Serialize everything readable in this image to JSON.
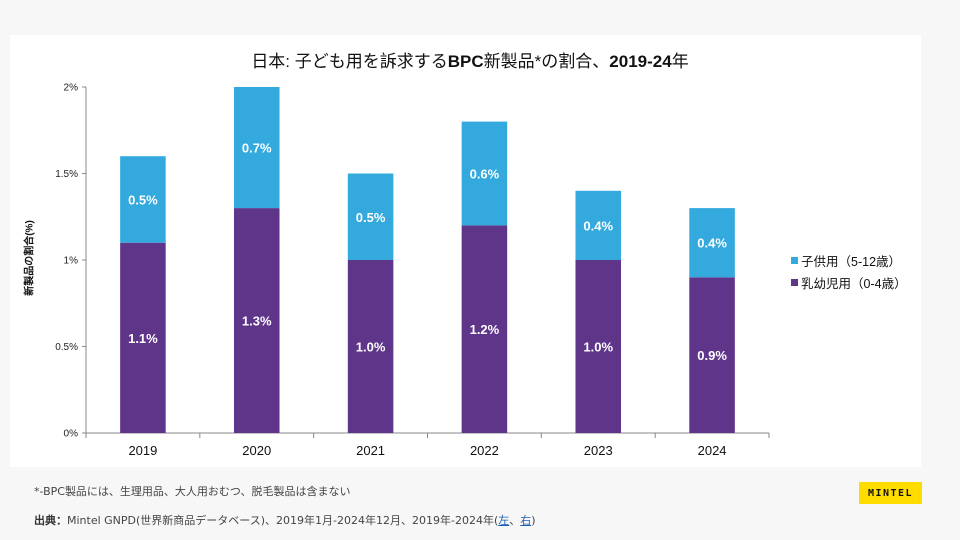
{
  "title": {
    "prefix": "日本: 子ども用を訴求する",
    "bold": "BPC",
    "middle": "新製品*の割合、",
    "years": "2019-24",
    "suffix": "年"
  },
  "colors": {
    "child": "#33a9de",
    "infant": "#5f358a",
    "background": "#f7f7f7",
    "logo": "#ffdc00"
  },
  "chart_data": {
    "type": "bar",
    "stacked": true,
    "title": "日本: 子ども用を訴求するBPC新製品*の割合、2019-24年",
    "xlabel": "",
    "ylabel": "新製品の割合(%)",
    "categories": [
      "2019",
      "2020",
      "2021",
      "2022",
      "2023",
      "2024"
    ],
    "series": [
      {
        "name": "乳幼児用（0-4歳）",
        "values": [
          1.1,
          1.3,
          1.0,
          1.2,
          1.0,
          0.9
        ],
        "labels": [
          "1.1%",
          "1.3%",
          "1.0%",
          "1.2%",
          "1.0%",
          "0.9%"
        ],
        "color": "#5f358a"
      },
      {
        "name": "子供用（5-12歳）",
        "values": [
          0.5,
          0.7,
          0.5,
          0.6,
          0.4,
          0.4
        ],
        "labels": [
          "0.5%",
          "0.7%",
          "0.5%",
          "0.6%",
          "0.4%",
          "0.4%"
        ],
        "color": "#33a9de"
      }
    ],
    "ylim": [
      0,
      2
    ],
    "yticks": [
      0,
      0.5,
      1,
      1.5,
      2
    ],
    "ytick_labels": [
      "0%",
      "0.5%",
      "1%",
      "1.5%",
      "2%"
    ],
    "grid": false,
    "legend_position": "right"
  },
  "legend": {
    "items": [
      {
        "label": "子供用（5-12歳）",
        "color": "#33a9de"
      },
      {
        "label": "乳幼児用（0-4歳）",
        "color": "#5f358a"
      }
    ]
  },
  "footnote": "*-BPC製品には、生理用品、大人用おむつ、脱毛製品は含まない",
  "source": {
    "label": "出典：",
    "text": "Mintel GNPD(世界新商品データベース)、2019年1月-2024年12月、2019年-2024年(",
    "link_left": "左",
    "separator": "、",
    "link_right": "右",
    "close": ")"
  },
  "logo": {
    "text": "MINTEL"
  }
}
